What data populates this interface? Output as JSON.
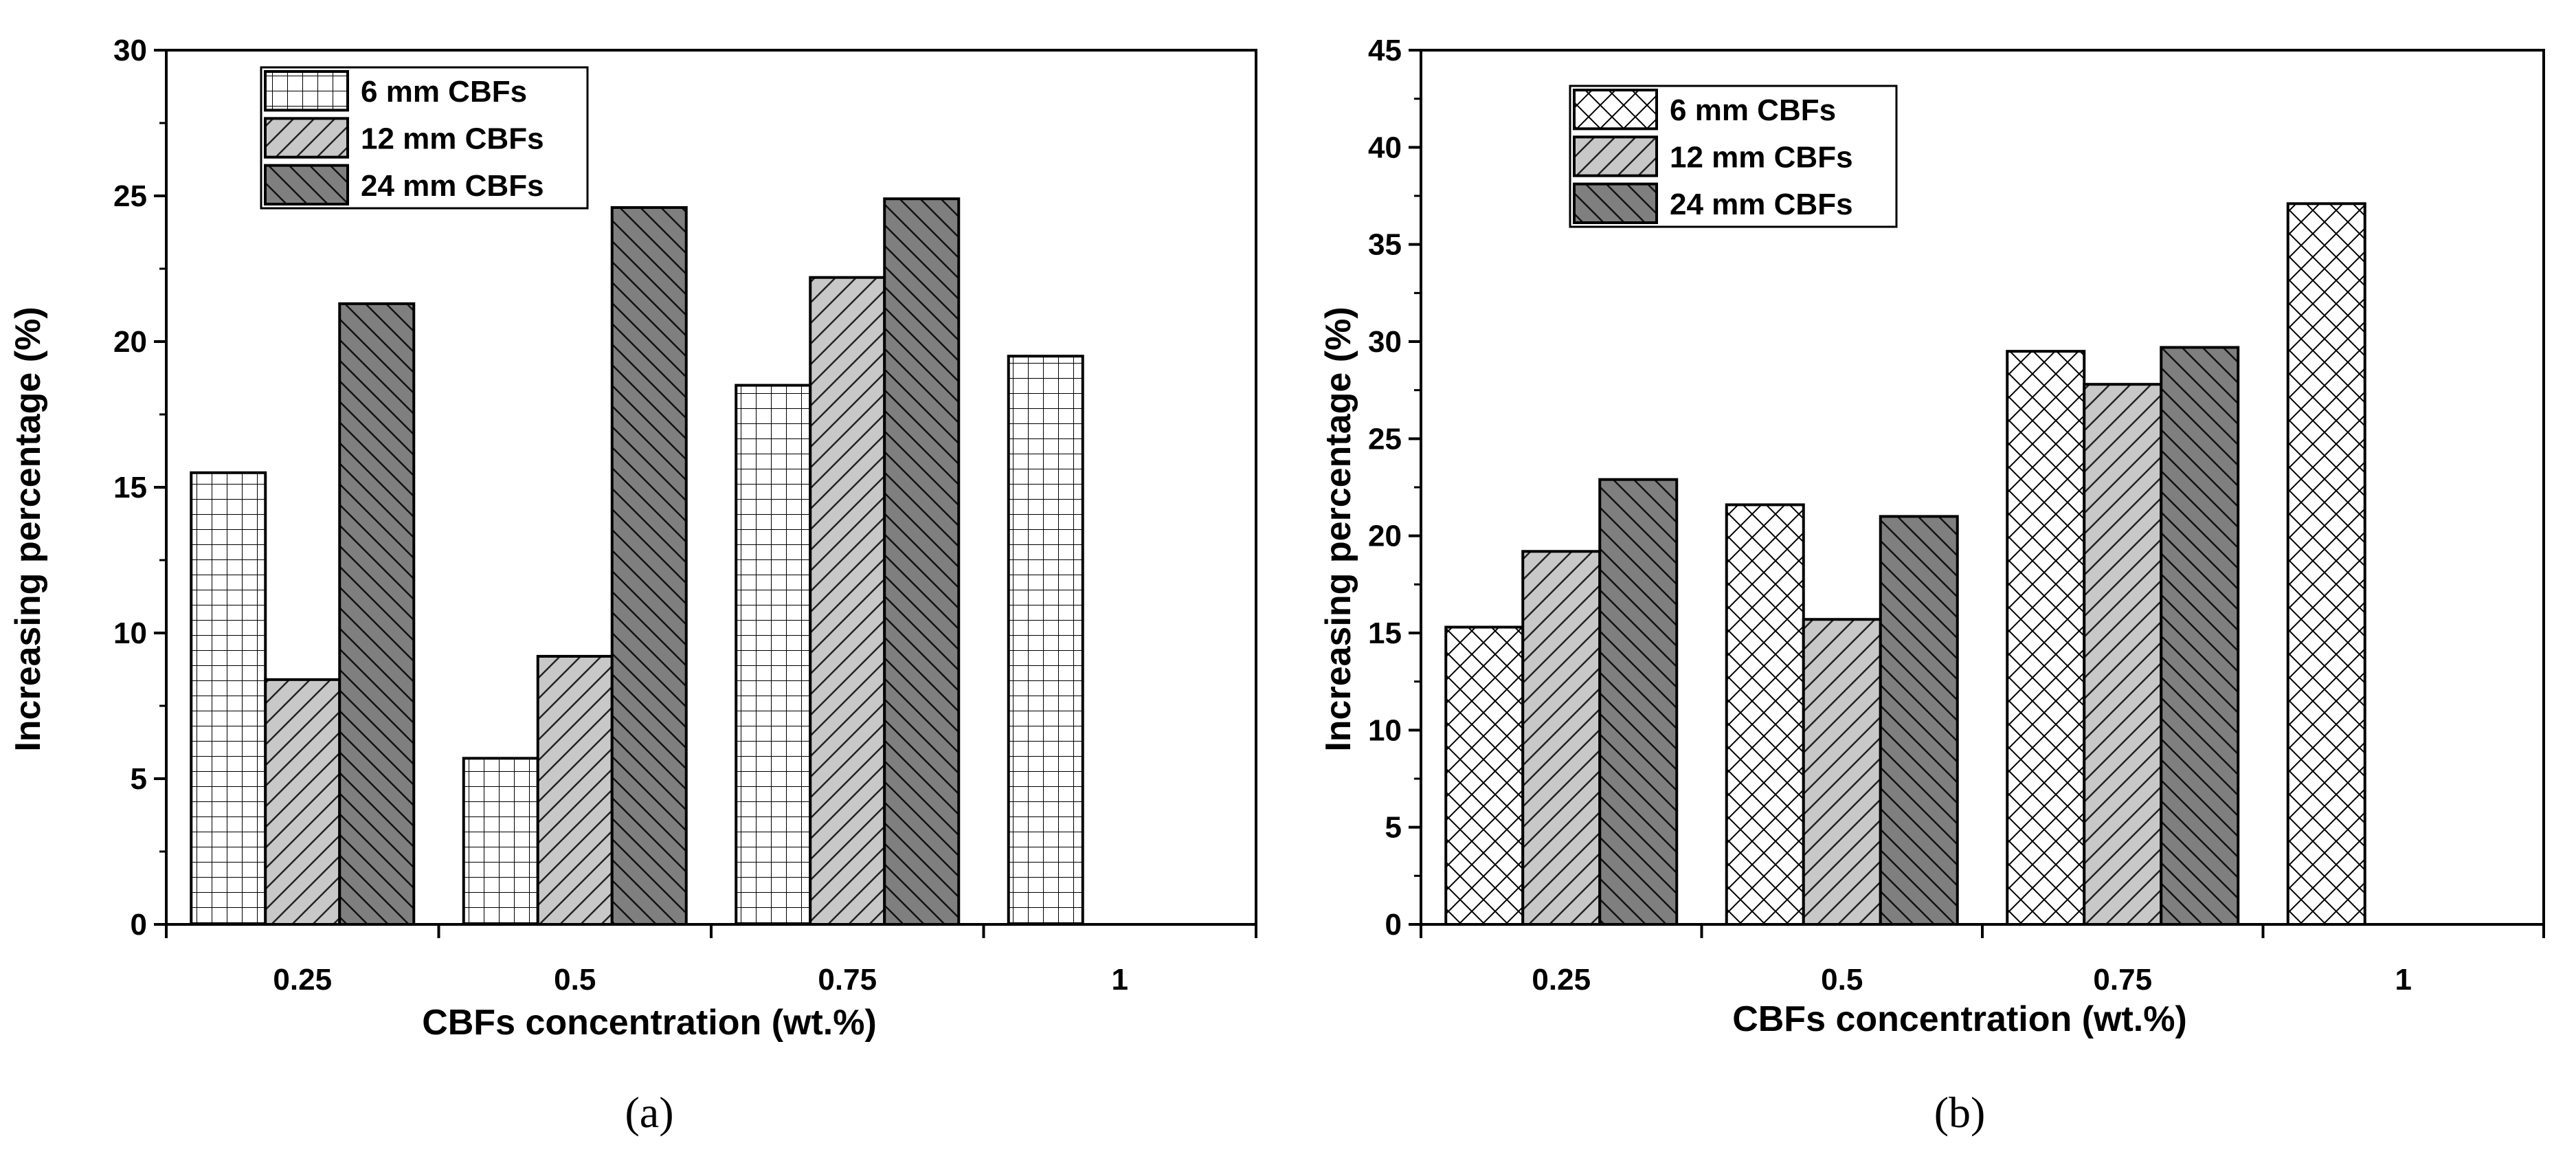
{
  "chart_data": [
    {
      "type": "bar",
      "panel_label": "(a)",
      "categories": [
        "0.25",
        "0.5",
        "0.75",
        "1"
      ],
      "xlabel": "CBFs concentration (wt.%)",
      "ylabel": "Increasing percentage (%)",
      "ylim": [
        0,
        30
      ],
      "yticks": [
        0,
        5,
        10,
        15,
        20,
        25,
        30
      ],
      "legend_position": "top-left",
      "grid": false,
      "series": [
        {
          "name": "6 mm CBFs",
          "values": [
            15.5,
            5.7,
            18.5,
            19.5
          ],
          "pattern": "grid",
          "fill": "#ffffff"
        },
        {
          "name": "12 mm CBFs",
          "values": [
            8.4,
            9.2,
            22.2,
            null
          ],
          "pattern": "hatch-light",
          "fill": "#c8c8c8"
        },
        {
          "name": "24 mm CBFs",
          "values": [
            21.3,
            24.6,
            24.9,
            null
          ],
          "pattern": "hatch-dark",
          "fill": "#808080"
        }
      ]
    },
    {
      "type": "bar",
      "panel_label": "(b)",
      "categories": [
        "0.25",
        "0.5",
        "0.75",
        "1"
      ],
      "xlabel": "CBFs concentration (wt.%)",
      "ylabel": "Increasing percentage (%)",
      "ylim": [
        0,
        45
      ],
      "yticks": [
        0,
        5,
        10,
        15,
        20,
        25,
        30,
        35,
        40,
        45
      ],
      "legend_position": "top-left",
      "grid": false,
      "series": [
        {
          "name": "6 mm CBFs",
          "values": [
            15.3,
            21.6,
            29.5,
            37.1
          ],
          "pattern": "crosshatch",
          "fill": "#ffffff"
        },
        {
          "name": "12 mm CBFs",
          "values": [
            19.2,
            15.7,
            27.8,
            null
          ],
          "pattern": "hatch-light",
          "fill": "#c8c8c8"
        },
        {
          "name": "24 mm CBFs",
          "values": [
            22.9,
            21.0,
            29.7,
            null
          ],
          "pattern": "hatch-dark",
          "fill": "#808080"
        }
      ]
    }
  ]
}
